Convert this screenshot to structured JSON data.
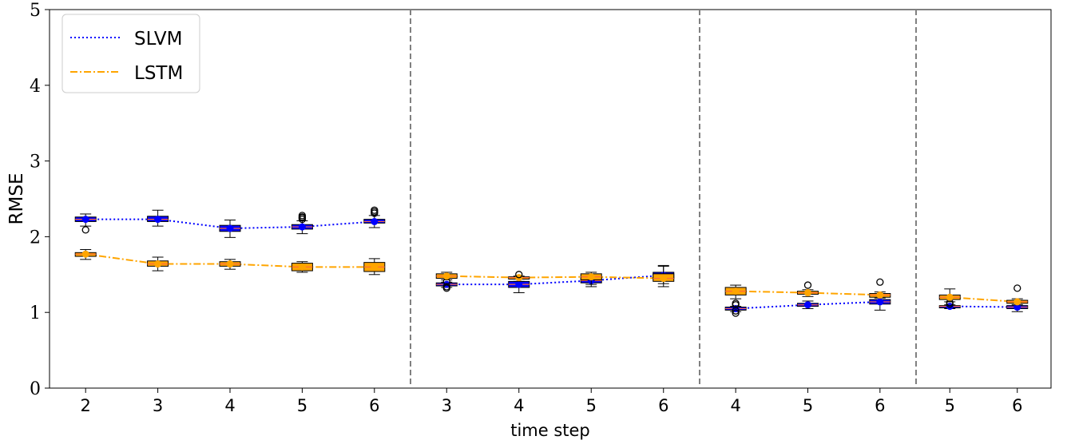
{
  "chart_data": {
    "type": "box",
    "xlabel": "time step",
    "ylabel": "RMSE",
    "ylim": [
      0,
      5
    ],
    "y_ticks": [
      "0",
      "1",
      "2",
      "3",
      "4",
      "5"
    ],
    "grid": false,
    "legend_position": "top-left",
    "series": [
      {
        "name": "SLVM",
        "color": "#0000ff",
        "style": "dotted",
        "box_color": "#0000ff"
      },
      {
        "name": "LSTM",
        "color": "#ffa500",
        "style": "dashdot",
        "box_color": "#ffa500"
      }
    ],
    "panels": [
      {
        "x_ticks": [
          "2",
          "3",
          "4",
          "5",
          "6"
        ],
        "SLVM": [
          {
            "x": 2,
            "median": 2.23,
            "q1": 2.2,
            "q3": 2.26,
            "whisker_low": 2.14,
            "whisker_high": 2.3,
            "outliers": [
              2.09
            ]
          },
          {
            "x": 3,
            "median": 2.23,
            "q1": 2.2,
            "q3": 2.27,
            "whisker_low": 2.14,
            "whisker_high": 2.35,
            "outliers": []
          },
          {
            "x": 4,
            "median": 2.11,
            "q1": 2.07,
            "q3": 2.15,
            "whisker_low": 1.99,
            "whisker_high": 2.22,
            "outliers": []
          },
          {
            "x": 5,
            "median": 2.13,
            "q1": 2.1,
            "q3": 2.16,
            "whisker_low": 2.04,
            "whisker_high": 2.21,
            "outliers": [
              2.23,
              2.25,
              2.26,
              2.28
            ]
          },
          {
            "x": 6,
            "median": 2.2,
            "q1": 2.18,
            "q3": 2.23,
            "whisker_low": 2.12,
            "whisker_high": 2.28,
            "outliers": [
              2.31,
              2.33,
              2.35
            ]
          }
        ],
        "LSTM": [
          {
            "x": 2,
            "median": 1.77,
            "q1": 1.74,
            "q3": 1.79,
            "whisker_low": 1.7,
            "whisker_high": 1.83,
            "outliers": []
          },
          {
            "x": 3,
            "median": 1.64,
            "q1": 1.61,
            "q3": 1.68,
            "whisker_low": 1.55,
            "whisker_high": 1.73,
            "outliers": []
          },
          {
            "x": 4,
            "median": 1.64,
            "q1": 1.61,
            "q3": 1.67,
            "whisker_low": 1.57,
            "whisker_high": 1.7,
            "outliers": []
          },
          {
            "x": 5,
            "median": 1.6,
            "q1": 1.55,
            "q3": 1.65,
            "whisker_low": 1.53,
            "whisker_high": 1.67,
            "outliers": []
          },
          {
            "x": 6,
            "median": 1.6,
            "q1": 1.54,
            "q3": 1.66,
            "whisker_low": 1.5,
            "whisker_high": 1.71,
            "outliers": []
          }
        ]
      },
      {
        "x_ticks": [
          "3",
          "4",
          "5",
          "6"
        ],
        "SLVM": [
          {
            "x": 3,
            "median": 1.37,
            "q1": 1.35,
            "q3": 1.39,
            "whisker_low": 1.33,
            "whisker_high": 1.4,
            "outliers": [
              1.32,
              1.34,
              1.41
            ]
          },
          {
            "x": 4,
            "median": 1.37,
            "q1": 1.33,
            "q3": 1.41,
            "whisker_low": 1.26,
            "whisker_high": 1.44,
            "outliers": []
          },
          {
            "x": 5,
            "median": 1.42,
            "q1": 1.39,
            "q3": 1.45,
            "whisker_low": 1.34,
            "whisker_high": 1.49,
            "outliers": []
          },
          {
            "x": 6,
            "median": 1.49,
            "q1": 1.45,
            "q3": 1.53,
            "whisker_low": 1.38,
            "whisker_high": 1.61,
            "outliers": []
          }
        ],
        "LSTM": [
          {
            "x": 3,
            "median": 1.48,
            "q1": 1.45,
            "q3": 1.51,
            "whisker_low": 1.43,
            "whisker_high": 1.53,
            "outliers": []
          },
          {
            "x": 4,
            "median": 1.46,
            "q1": 1.44,
            "q3": 1.47,
            "whisker_low": 1.41,
            "whisker_high": 1.48,
            "outliers": [
              1.5
            ]
          },
          {
            "x": 5,
            "median": 1.47,
            "q1": 1.43,
            "q3": 1.51,
            "whisker_low": 1.37,
            "whisker_high": 1.53,
            "outliers": []
          },
          {
            "x": 6,
            "median": 1.45,
            "q1": 1.41,
            "q3": 1.51,
            "whisker_low": 1.34,
            "whisker_high": 1.62,
            "outliers": []
          }
        ]
      },
      {
        "x_ticks": [
          "4",
          "5",
          "6"
        ],
        "SLVM": [
          {
            "x": 4,
            "median": 1.05,
            "q1": 1.03,
            "q3": 1.07,
            "whisker_low": 1.01,
            "whisker_high": 1.08,
            "outliers": [
              0.99,
              1.02,
              1.1,
              1.12
            ]
          },
          {
            "x": 5,
            "median": 1.1,
            "q1": 1.08,
            "q3": 1.12,
            "whisker_low": 1.05,
            "whisker_high": 1.15,
            "outliers": []
          },
          {
            "x": 6,
            "median": 1.14,
            "q1": 1.11,
            "q3": 1.17,
            "whisker_low": 1.03,
            "whisker_high": 1.21,
            "outliers": []
          }
        ],
        "LSTM": [
          {
            "x": 4,
            "median": 1.28,
            "q1": 1.23,
            "q3": 1.33,
            "whisker_low": 1.18,
            "whisker_high": 1.36,
            "outliers": []
          },
          {
            "x": 5,
            "median": 1.26,
            "q1": 1.24,
            "q3": 1.28,
            "whisker_low": 1.21,
            "whisker_high": 1.3,
            "outliers": [
              1.36
            ]
          },
          {
            "x": 6,
            "median": 1.23,
            "q1": 1.2,
            "q3": 1.25,
            "whisker_low": 1.19,
            "whisker_high": 1.27,
            "outliers": [
              1.4
            ]
          }
        ]
      },
      {
        "x_ticks": [
          "5",
          "6"
        ],
        "SLVM": [
          {
            "x": 5,
            "median": 1.08,
            "q1": 1.06,
            "q3": 1.09,
            "whisker_low": 1.05,
            "whisker_high": 1.1,
            "outliers": [
              1.11,
              1.13
            ]
          },
          {
            "x": 6,
            "median": 1.07,
            "q1": 1.05,
            "q3": 1.09,
            "whisker_low": 1.01,
            "whisker_high": 1.12,
            "outliers": []
          }
        ],
        "LSTM": [
          {
            "x": 5,
            "median": 1.2,
            "q1": 1.17,
            "q3": 1.23,
            "whisker_low": 1.14,
            "whisker_high": 1.31,
            "outliers": []
          },
          {
            "x": 6,
            "median": 1.14,
            "q1": 1.12,
            "q3": 1.16,
            "whisker_low": 1.1,
            "whisker_high": 1.18,
            "outliers": [
              1.32
            ]
          }
        ]
      }
    ]
  }
}
